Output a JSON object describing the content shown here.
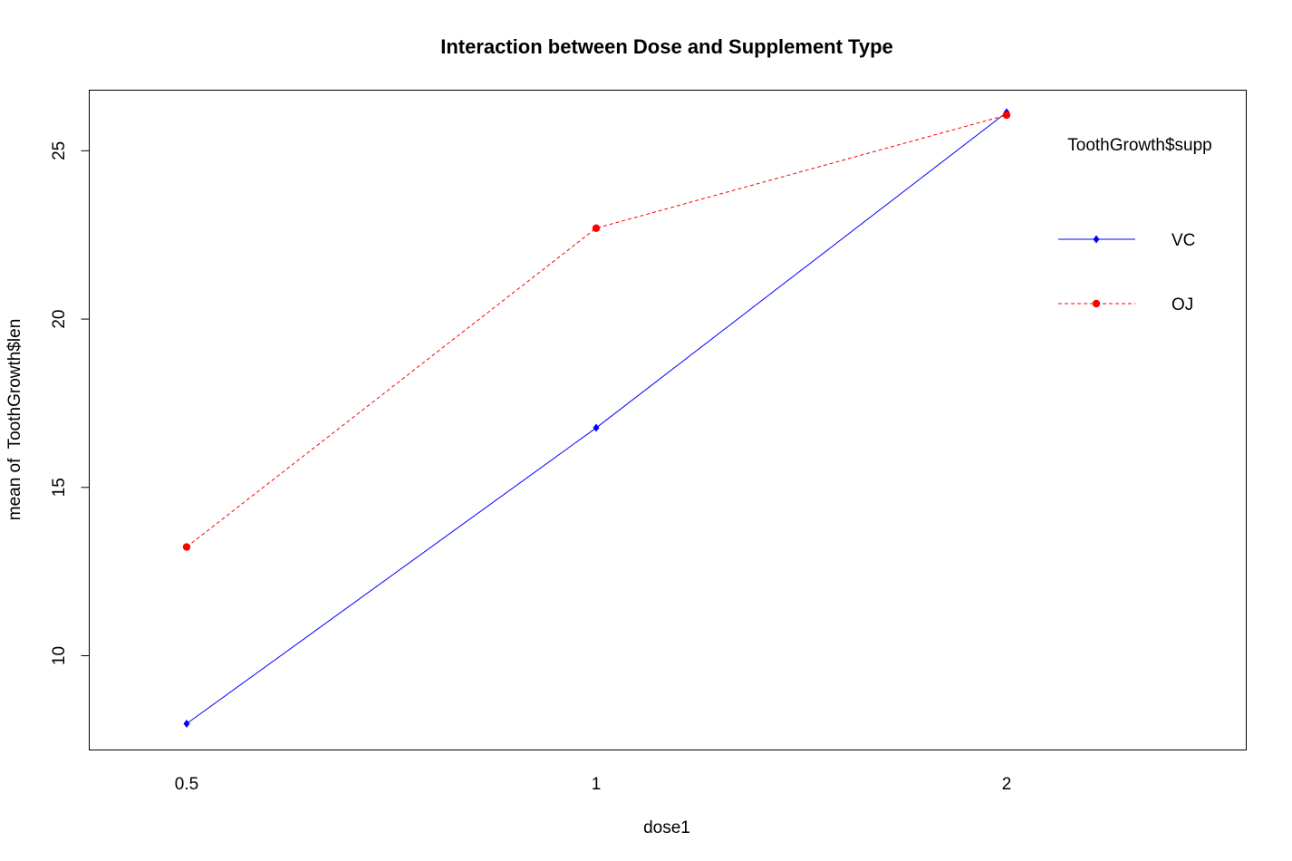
{
  "chart_data": {
    "type": "line",
    "title": "Interaction between Dose and Supplement Type",
    "xlabel": "dose1",
    "ylabel": "mean of  ToothGrowth$len",
    "categories": [
      "0.5",
      "1",
      "2"
    ],
    "ylim": [
      7.2,
      26.8
    ],
    "yticks": [
      "10",
      "15",
      "20",
      "25"
    ],
    "grid": false,
    "legend": {
      "title": "ToothGrowth$supp",
      "placement": "top-right",
      "boxed": false
    },
    "series": [
      {
        "name": "VC",
        "values": [
          7.98,
          16.77,
          26.14
        ],
        "color": "#0000ff",
        "dashed": false,
        "marker": "diamond"
      },
      {
        "name": "OJ",
        "values": [
          13.23,
          22.7,
          26.06
        ],
        "color": "#ff0000",
        "dashed": true,
        "marker": "circle"
      }
    ]
  }
}
